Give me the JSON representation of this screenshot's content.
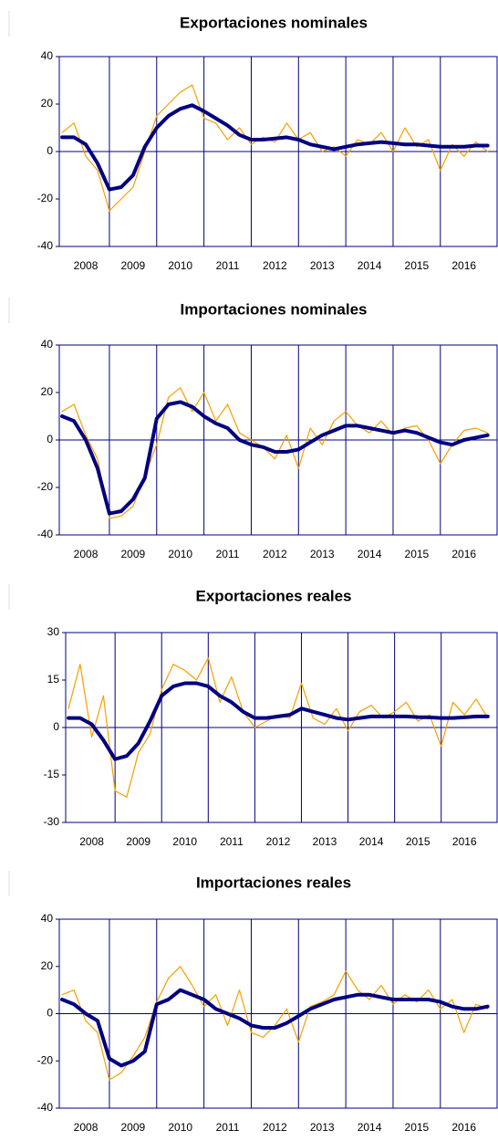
{
  "chart_data": [
    {
      "type": "line",
      "title": "Exportaciones nominales",
      "x": [
        2008,
        2008.25,
        2008.5,
        2008.75,
        2009,
        2009.25,
        2009.5,
        2009.75,
        2010,
        2010.25,
        2010.5,
        2010.75,
        2011,
        2011.25,
        2011.5,
        2011.75,
        2012,
        2012.25,
        2012.5,
        2012.75,
        2013,
        2013.25,
        2013.5,
        2013.75,
        2014,
        2014.25,
        2014.5,
        2014.75,
        2015,
        2015.25,
        2015.5,
        2015.75,
        2016,
        2016.25,
        2016.5,
        2016.75,
        2017
      ],
      "series": [
        {
          "color": "#f5a000",
          "values": [
            8,
            12,
            -2,
            -8,
            -25,
            -20,
            -15,
            0,
            15,
            20,
            25,
            28,
            14,
            12,
            5,
            10,
            3,
            6,
            4,
            12,
            5,
            8,
            0,
            2,
            -2,
            5,
            3,
            8,
            0,
            10,
            2,
            5,
            -8,
            3,
            -2,
            4,
            0
          ]
        },
        {
          "color": "#000080",
          "values": [
            6,
            6,
            3,
            -5,
            -16,
            -15,
            -10,
            2,
            10,
            15,
            18,
            19.5,
            17,
            14,
            11,
            7,
            5,
            5,
            5.5,
            6,
            5,
            3,
            2,
            1,
            2,
            3,
            3.5,
            4,
            3.5,
            3,
            3,
            2.5,
            2,
            2,
            2,
            2.5,
            2.5
          ]
        }
      ],
      "xlim": [
        2007.94,
        2017.2
      ],
      "xticks": [
        {
          "value": 2008.5,
          "label": "2008"
        },
        {
          "value": 2009.5,
          "label": "2009"
        },
        {
          "value": 2010.5,
          "label": "2010"
        },
        {
          "value": 2011.5,
          "label": "2011"
        },
        {
          "value": 2012.5,
          "label": "2012"
        },
        {
          "value": 2013.5,
          "label": "2013"
        },
        {
          "value": 2014.5,
          "label": "2014"
        },
        {
          "value": 2015.5,
          "label": "2015"
        },
        {
          "value": 2016.5,
          "label": "2016"
        }
      ],
      "xgrid": [
        2009,
        2010,
        2011,
        2012,
        2013,
        2014,
        2015,
        2016
      ],
      "ylim": [
        -40,
        40
      ],
      "yticks": [
        -40,
        -20,
        0,
        20,
        40
      ]
    },
    {
      "type": "line",
      "title": "Importaciones nominales",
      "x": [
        2008,
        2008.25,
        2008.5,
        2008.75,
        2009,
        2009.25,
        2009.5,
        2009.75,
        2010,
        2010.25,
        2010.5,
        2010.75,
        2011,
        2011.25,
        2011.5,
        2011.75,
        2012,
        2012.25,
        2012.5,
        2012.75,
        2013,
        2013.25,
        2013.5,
        2013.75,
        2014,
        2014.25,
        2014.5,
        2014.75,
        2015,
        2015.25,
        2015.5,
        2015.75,
        2016,
        2016.25,
        2016.5,
        2016.75,
        2017
      ],
      "series": [
        {
          "color": "#f5a000",
          "values": [
            12,
            15,
            2,
            -8,
            -33,
            -32,
            -28,
            -15,
            -2,
            18,
            22,
            12,
            20,
            8,
            15,
            3,
            0,
            -3,
            -8,
            2,
            -12,
            5,
            -2,
            8,
            12,
            6,
            3,
            8,
            2,
            5,
            6,
            0,
            -10,
            -2,
            4,
            5,
            3
          ]
        },
        {
          "color": "#000080",
          "values": [
            10,
            8,
            0,
            -12,
            -31,
            -30,
            -25,
            -16,
            9,
            15,
            16,
            14,
            10,
            7,
            5,
            0,
            -2,
            -3,
            -5,
            -5,
            -4,
            -1,
            2,
            4,
            6,
            6,
            5,
            4,
            3,
            4,
            3,
            1,
            -1,
            -2,
            0,
            1,
            2
          ]
        }
      ],
      "xlim": [
        2007.94,
        2017.2
      ],
      "xticks": [
        {
          "value": 2008.5,
          "label": "2008"
        },
        {
          "value": 2009.5,
          "label": "2009"
        },
        {
          "value": 2010.5,
          "label": "2010"
        },
        {
          "value": 2011.5,
          "label": "2011"
        },
        {
          "value": 2012.5,
          "label": "2012"
        },
        {
          "value": 2013.5,
          "label": "2013"
        },
        {
          "value": 2014.5,
          "label": "2014"
        },
        {
          "value": 2015.5,
          "label": "2015"
        },
        {
          "value": 2016.5,
          "label": "2016"
        }
      ],
      "xgrid": [
        2009,
        2010,
        2011,
        2012,
        2013,
        2014,
        2015,
        2016
      ],
      "ylim": [
        -40,
        40
      ],
      "yticks": [
        -40,
        -20,
        0,
        20,
        40
      ]
    },
    {
      "type": "line",
      "title": "Exportaciones reales",
      "x": [
        2008,
        2008.25,
        2008.5,
        2008.75,
        2009,
        2009.25,
        2009.5,
        2009.75,
        2010,
        2010.25,
        2010.5,
        2010.75,
        2011,
        2011.25,
        2011.5,
        2011.75,
        2012,
        2012.25,
        2012.5,
        2012.75,
        2013,
        2013.25,
        2013.5,
        2013.75,
        2014,
        2014.25,
        2014.5,
        2014.75,
        2015,
        2015.25,
        2015.5,
        2015.75,
        2016,
        2016.25,
        2016.5,
        2016.75,
        2017
      ],
      "series": [
        {
          "color": "#f5a000",
          "values": [
            6,
            20,
            -3,
            10,
            -20,
            -22,
            -8,
            -2,
            12,
            20,
            18,
            15,
            22,
            8,
            16,
            5,
            0,
            2,
            4,
            3,
            14,
            3,
            1,
            6,
            -1,
            5,
            7,
            3,
            5,
            8,
            2,
            4,
            -6,
            8,
            4,
            9,
            3
          ]
        },
        {
          "color": "#000080",
          "values": [
            3,
            3,
            1,
            -4,
            -10,
            -9,
            -5,
            2,
            10,
            13,
            14,
            14,
            13,
            10,
            8,
            5,
            3,
            3,
            3.5,
            4,
            6,
            5,
            4,
            3,
            2.5,
            3,
            3.5,
            3.5,
            3.5,
            3.5,
            3.3,
            3.2,
            3,
            3,
            3.2,
            3.5,
            3.5
          ]
        }
      ],
      "xlim": [
        2007.94,
        2017.2
      ],
      "xticks": [
        {
          "value": 2008.5,
          "label": "2008"
        },
        {
          "value": 2009.5,
          "label": "2009"
        },
        {
          "value": 2010.5,
          "label": "2010"
        },
        {
          "value": 2011.5,
          "label": "2011"
        },
        {
          "value": 2012.5,
          "label": "2012"
        },
        {
          "value": 2013.5,
          "label": "2013"
        },
        {
          "value": 2014.5,
          "label": "2014"
        },
        {
          "value": 2015.5,
          "label": "2015"
        },
        {
          "value": 2016.5,
          "label": "2016"
        }
      ],
      "xgrid": [
        2009,
        2010,
        2011,
        2012,
        2013,
        2014,
        2015,
        2016
      ],
      "ylim": [
        -30,
        30
      ],
      "yticks": [
        -30,
        -15,
        0,
        15,
        30
      ]
    },
    {
      "type": "line",
      "title": "Importaciones reales",
      "x": [
        2008,
        2008.25,
        2008.5,
        2008.75,
        2009,
        2009.25,
        2009.5,
        2009.75,
        2010,
        2010.25,
        2010.5,
        2010.75,
        2011,
        2011.25,
        2011.5,
        2011.75,
        2012,
        2012.25,
        2012.5,
        2012.75,
        2013,
        2013.25,
        2013.5,
        2013.75,
        2014,
        2014.25,
        2014.5,
        2014.75,
        2015,
        2015.25,
        2015.5,
        2015.75,
        2016,
        2016.25,
        2016.5,
        2016.75,
        2017
      ],
      "series": [
        {
          "color": "#f5a000",
          "values": [
            8,
            10,
            -3,
            -8,
            -28,
            -25,
            -18,
            -10,
            5,
            15,
            20,
            12,
            3,
            8,
            -5,
            10,
            -8,
            -10,
            -5,
            2,
            -12,
            3,
            5,
            8,
            18,
            10,
            6,
            12,
            4,
            8,
            5,
            10,
            2,
            6,
            -8,
            4,
            2
          ]
        },
        {
          "color": "#000080",
          "values": [
            6,
            4,
            0,
            -3,
            -19,
            -22,
            -20,
            -16,
            4,
            6,
            10,
            8,
            6,
            2,
            0,
            -2,
            -5,
            -6,
            -6,
            -4,
            -1,
            2,
            4,
            6,
            7,
            8,
            8,
            7,
            6,
            6,
            6,
            6,
            5,
            3,
            2,
            2,
            3
          ]
        }
      ],
      "xlim": [
        2007.94,
        2017.2
      ],
      "xticks": [
        {
          "value": 2008.5,
          "label": "2008"
        },
        {
          "value": 2009.5,
          "label": "2009"
        },
        {
          "value": 2010.5,
          "label": "2010"
        },
        {
          "value": 2011.5,
          "label": "2011"
        },
        {
          "value": 2012.5,
          "label": "2012"
        },
        {
          "value": 2013.5,
          "label": "2013"
        },
        {
          "value": 2014.5,
          "label": "2014"
        },
        {
          "value": 2015.5,
          "label": "2015"
        },
        {
          "value": 2016.5,
          "label": "2016"
        }
      ],
      "xgrid": [
        2009,
        2010,
        2011,
        2012,
        2013,
        2014,
        2015,
        2016
      ],
      "ylim": [
        -40,
        40
      ],
      "yticks": [
        -40,
        -20,
        0,
        20,
        40
      ]
    }
  ]
}
